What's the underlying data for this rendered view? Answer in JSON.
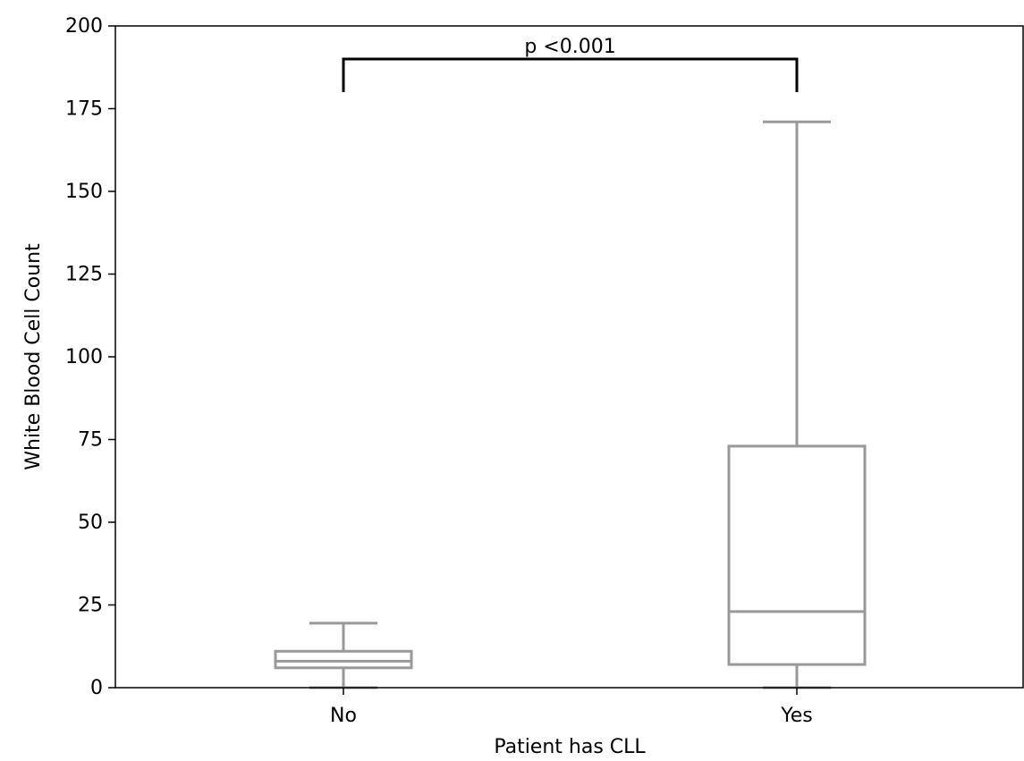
{
  "chart_data": {
    "type": "box",
    "title": "",
    "xlabel": "Patient has CLL",
    "ylabel": "White Blood Cell Count",
    "ylim": [
      0,
      200
    ],
    "yticks": [
      0,
      25,
      50,
      75,
      100,
      125,
      150,
      175,
      200
    ],
    "ytick_labels": [
      "0",
      "25",
      "50",
      "75",
      "100",
      "125",
      "150",
      "175",
      "200"
    ],
    "categories": [
      "No",
      "Yes"
    ],
    "boxes": [
      {
        "category": "No",
        "whisker_low": 0,
        "q1": 6,
        "median": 8,
        "q3": 11,
        "whisker_high": 19.5
      },
      {
        "category": "Yes",
        "whisker_low": 0,
        "q1": 7,
        "median": 23,
        "q3": 73,
        "whisker_high": 171
      }
    ],
    "annotation": {
      "text": "p <0.001",
      "bracket_top": 190,
      "bracket_bottom": 180,
      "from": "No",
      "to": "Yes"
    },
    "colors": {
      "box": "#999999",
      "bracket": "#000000",
      "axes": "#000000"
    },
    "grid": false
  }
}
